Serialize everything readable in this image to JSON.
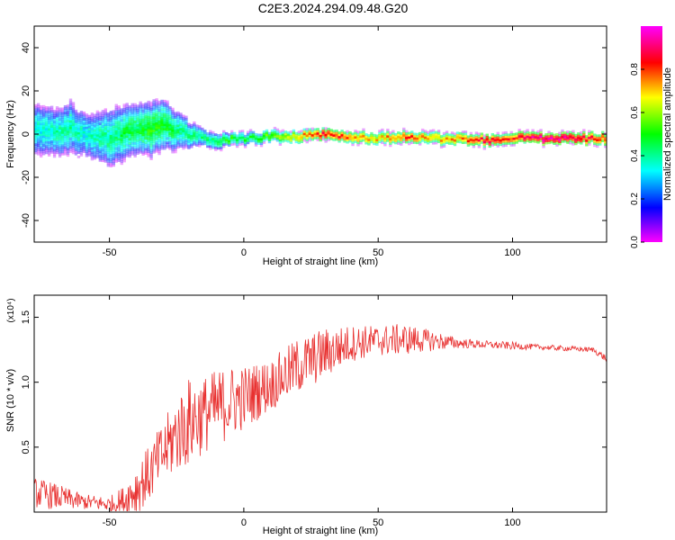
{
  "title": "C2E3.2024.294.09.48.G20",
  "chart_data": [
    {
      "type": "heatmap",
      "xlabel": "Height of straight line (km)",
      "ylabel": "Frequency (Hz)",
      "xlim": [
        -78,
        135
      ],
      "ylim": [
        -50,
        50
      ],
      "xticks": [
        -50,
        0,
        50,
        100
      ],
      "yticks": [
        -40,
        -20,
        0,
        20,
        40
      ],
      "colorbar": {
        "label": "Normalized spectral amplitude",
        "range": [
          0,
          1
        ],
        "ticks": [
          0.0,
          0.2,
          0.4,
          0.6,
          0.8
        ],
        "colors": [
          "#ff00ff",
          "#0000ff",
          "#00ffff",
          "#00ff00",
          "#ffff00",
          "#ff0000",
          "#ff00ff"
        ]
      },
      "ridge": {
        "x": [
          -78,
          -70,
          -65,
          -60,
          -55,
          -50,
          -45,
          -40,
          -35,
          -30,
          -25,
          -20,
          -15,
          -10,
          -5,
          0,
          10,
          20,
          30,
          40,
          50,
          60,
          70,
          80,
          90,
          100,
          110,
          120,
          135
        ],
        "center": [
          2,
          1,
          3,
          0,
          -1,
          -2,
          1,
          3,
          2,
          5,
          1,
          0,
          -2,
          -3,
          -2,
          -2,
          -1,
          -1,
          0,
          -1,
          -2,
          -1,
          -2,
          -2,
          -3,
          -2,
          -2,
          -2,
          -2
        ],
        "spread": [
          12,
          11,
          12,
          10,
          11,
          14,
          13,
          12,
          13,
          12,
          9,
          6,
          4,
          4,
          3,
          3,
          3,
          3,
          3,
          3,
          3,
          3,
          3,
          3,
          3,
          3,
          3,
          3,
          3
        ],
        "amplitude": [
          0.35,
          0.38,
          0.4,
          0.35,
          0.38,
          0.4,
          0.45,
          0.45,
          0.5,
          0.48,
          0.42,
          0.4,
          0.42,
          0.45,
          0.5,
          0.45,
          0.55,
          0.7,
          0.85,
          0.75,
          0.7,
          0.8,
          0.7,
          0.75,
          0.85,
          0.8,
          0.95,
          0.9,
          0.8
        ]
      }
    },
    {
      "type": "line",
      "xlabel": "Height of straight line (km)",
      "ylabel": "SNR (10 * v/v)",
      "yscale_label": "(x10⁴)",
      "xlim": [
        -78,
        135
      ],
      "ylim": [
        0,
        1.67
      ],
      "xticks": [
        -50,
        0,
        50,
        100
      ],
      "yticks": [
        0.5,
        1.0,
        1.5
      ],
      "ytick_labels": [
        "0.5",
        "1.0",
        "1.5"
      ],
      "series": [
        {
          "color": "#e8302f",
          "x": [
            -78,
            -70,
            -60,
            -50,
            -45,
            -40,
            -35,
            -30,
            -25,
            -20,
            -15,
            -10,
            -5,
            0,
            10,
            20,
            30,
            40,
            50,
            60,
            70,
            80,
            90,
            100,
            110,
            120,
            130,
            135
          ],
          "y": [
            0.15,
            0.12,
            0.08,
            0.06,
            0.08,
            0.18,
            0.3,
            0.45,
            0.6,
            0.7,
            0.75,
            0.8,
            0.85,
            0.88,
            0.98,
            1.12,
            1.22,
            1.3,
            1.32,
            1.33,
            1.32,
            1.3,
            1.29,
            1.28,
            1.27,
            1.26,
            1.25,
            1.18
          ],
          "noise": [
            0.12,
            0.1,
            0.06,
            0.06,
            0.12,
            0.2,
            0.22,
            0.25,
            0.3,
            0.35,
            0.3,
            0.3,
            0.28,
            0.25,
            0.2,
            0.22,
            0.2,
            0.14,
            0.12,
            0.12,
            0.08,
            0.04,
            0.03,
            0.03,
            0.02,
            0.02,
            0.02,
            0.03
          ]
        }
      ]
    }
  ]
}
